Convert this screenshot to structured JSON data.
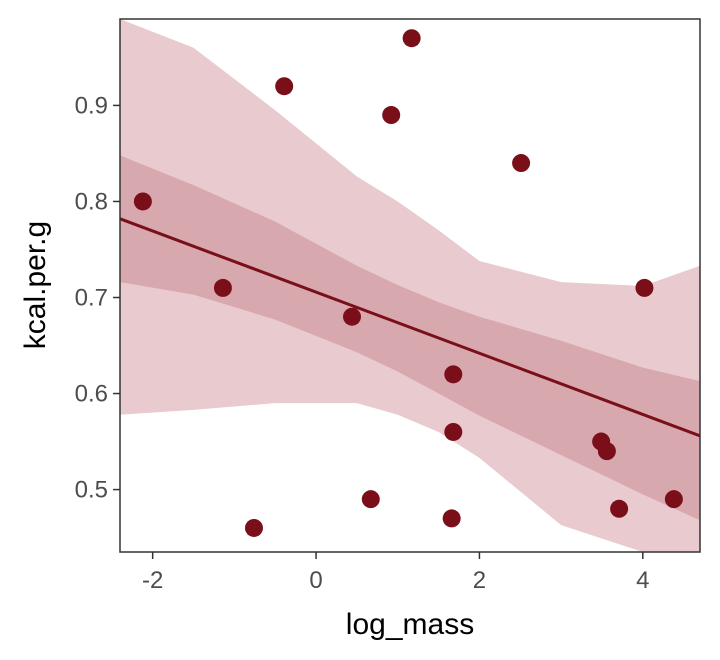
{
  "chart_data": {
    "type": "scatter",
    "xlabel": "log_mass",
    "ylabel": "kcal.per.g",
    "xlim": [
      -2.4,
      4.7
    ],
    "ylim": [
      0.435,
      0.99
    ],
    "x_ticks": [
      -2,
      0,
      2,
      4
    ],
    "x_tick_labels": [
      "-2",
      "0",
      "2",
      "4"
    ],
    "y_ticks": [
      0.5,
      0.6,
      0.7,
      0.8,
      0.9
    ],
    "y_tick_labels": [
      "0.5",
      "0.6",
      "0.7",
      "0.8",
      "0.9"
    ],
    "grid": false,
    "points": [
      {
        "x": -2.12,
        "y": 0.8
      },
      {
        "x": -1.14,
        "y": 0.71
      },
      {
        "x": -0.76,
        "y": 0.46
      },
      {
        "x": -0.39,
        "y": 0.92
      },
      {
        "x": 0.44,
        "y": 0.68
      },
      {
        "x": 0.67,
        "y": 0.49
      },
      {
        "x": 0.92,
        "y": 0.89
      },
      {
        "x": 1.17,
        "y": 0.97
      },
      {
        "x": 1.66,
        "y": 0.47
      },
      {
        "x": 1.68,
        "y": 0.62
      },
      {
        "x": 1.68,
        "y": 0.56
      },
      {
        "x": 2.51,
        "y": 0.84
      },
      {
        "x": 3.49,
        "y": 0.55
      },
      {
        "x": 3.56,
        "y": 0.54
      },
      {
        "x": 3.71,
        "y": 0.48
      },
      {
        "x": 4.02,
        "y": 0.71
      },
      {
        "x": 4.38,
        "y": 0.49
      }
    ],
    "regression_line": {
      "x": [
        -2.4,
        4.7
      ],
      "y": [
        0.782,
        0.556
      ]
    },
    "mean_band": {
      "x": [
        -2.4,
        -1.5,
        -0.5,
        0.5,
        1.0,
        1.5,
        2.0,
        3.0,
        4.0,
        4.7
      ],
      "lower": [
        0.716,
        0.703,
        0.677,
        0.643,
        0.623,
        0.6,
        0.577,
        0.536,
        0.495,
        0.468
      ],
      "upper": [
        0.848,
        0.817,
        0.779,
        0.733,
        0.713,
        0.695,
        0.68,
        0.655,
        0.627,
        0.613
      ]
    },
    "prediction_band": {
      "x": [
        -2.4,
        -1.5,
        -0.5,
        0.5,
        1.0,
        1.5,
        2.0,
        3.0,
        4.0,
        4.7
      ],
      "lower": [
        0.578,
        0.583,
        0.59,
        0.59,
        0.578,
        0.56,
        0.533,
        0.463,
        0.435,
        0.435
      ],
      "upper": [
        0.99,
        0.96,
        0.895,
        0.826,
        0.8,
        0.77,
        0.738,
        0.716,
        0.712,
        0.733
      ]
    },
    "colors": {
      "points": "#7a0f1a",
      "line": "#7a0f1a",
      "band": "#e9cace",
      "band_inner": "#d7a8ad",
      "axis": "#333333"
    }
  }
}
